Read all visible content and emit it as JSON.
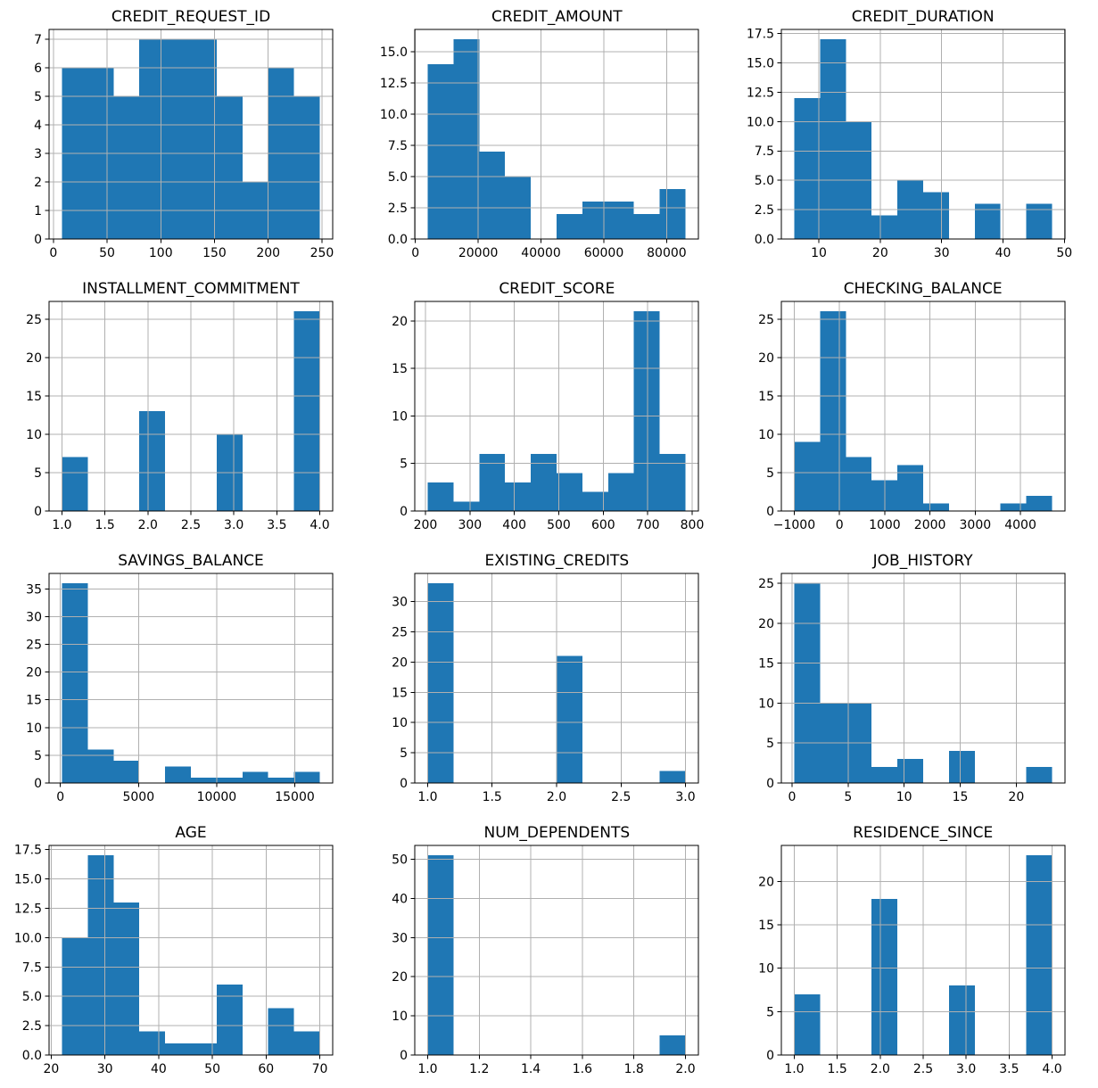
{
  "figure": {
    "background": "#ffffff",
    "axes_background": "#ffffff",
    "bar_color": "#1f77b4",
    "grid_color": "#b0b0b0",
    "spine_color": "#000000",
    "text_color": "#000000"
  },
  "layout": {
    "rows": 4,
    "cols": 3,
    "grid": true,
    "legend": null,
    "total_samples": 56
  },
  "chart_data": [
    {
      "type": "bar",
      "kind": "histogram",
      "title": "CREDIT_REQUEST_ID",
      "bins": 10,
      "bin_start": 8,
      "bin_end": 248,
      "counts": [
        6,
        6,
        5,
        7,
        7,
        7,
        5,
        2,
        6,
        5
      ],
      "xlabel": "",
      "ylabel": "",
      "x_ticks": [
        0,
        50,
        100,
        150,
        200,
        250
      ],
      "x_tick_labels": [
        "0",
        "50",
        "100",
        "150",
        "200",
        "250"
      ],
      "y_ticks": [
        0,
        1,
        2,
        3,
        4,
        5,
        6,
        7
      ],
      "y_tick_labels": [
        "0",
        "1",
        "2",
        "3",
        "4",
        "5",
        "6",
        "7"
      ]
    },
    {
      "type": "bar",
      "kind": "histogram",
      "title": "CREDIT_AMOUNT",
      "bins": 10,
      "bin_start": 3900,
      "bin_end": 86000,
      "counts": [
        14,
        16,
        7,
        5,
        0,
        2,
        3,
        3,
        2,
        4
      ],
      "xlabel": "",
      "ylabel": "",
      "x_ticks": [
        0,
        20000,
        40000,
        60000,
        80000
      ],
      "x_tick_labels": [
        "0",
        "20000",
        "40000",
        "60000",
        "80000"
      ],
      "y_ticks": [
        0,
        2.5,
        5,
        7.5,
        10,
        12.5,
        15
      ],
      "y_tick_labels": [
        "0.0",
        "2.5",
        "5.0",
        "7.5",
        "10.0",
        "12.5",
        "15.0"
      ]
    },
    {
      "type": "bar",
      "kind": "histogram",
      "title": "CREDIT_DURATION",
      "bins": 10,
      "bin_start": 6,
      "bin_end": 48,
      "counts": [
        12,
        17,
        10,
        2,
        5,
        4,
        0,
        3,
        0,
        3
      ],
      "xlabel": "",
      "ylabel": "",
      "x_ticks": [
        10,
        20,
        30,
        40,
        50
      ],
      "x_tick_labels": [
        "10",
        "20",
        "30",
        "40",
        "50"
      ],
      "y_ticks": [
        0,
        2.5,
        5,
        7.5,
        10,
        12.5,
        15,
        17.5
      ],
      "y_tick_labels": [
        "0.0",
        "2.5",
        "5.0",
        "7.5",
        "10.0",
        "12.5",
        "15.0",
        "17.5"
      ]
    },
    {
      "type": "bar",
      "kind": "histogram",
      "title": "INSTALLMENT_COMMITMENT",
      "bins": 10,
      "bin_start": 1,
      "bin_end": 4,
      "counts": [
        7,
        0,
        0,
        13,
        0,
        0,
        10,
        0,
        0,
        26
      ],
      "xlabel": "",
      "ylabel": "",
      "x_ticks": [
        1,
        1.5,
        2,
        2.5,
        3,
        3.5,
        4
      ],
      "x_tick_labels": [
        "1.0",
        "1.5",
        "2.0",
        "2.5",
        "3.0",
        "3.5",
        "4.0"
      ],
      "y_ticks": [
        0,
        5,
        10,
        15,
        20,
        25
      ],
      "y_tick_labels": [
        "0",
        "5",
        "10",
        "15",
        "20",
        "25"
      ]
    },
    {
      "type": "bar",
      "kind": "histogram",
      "title": "CREDIT_SCORE",
      "bins": 10,
      "bin_start": 205,
      "bin_end": 785,
      "counts": [
        3,
        1,
        6,
        3,
        6,
        4,
        2,
        4,
        21,
        6
      ],
      "xlabel": "",
      "ylabel": "",
      "x_ticks": [
        200,
        300,
        400,
        500,
        600,
        700,
        800
      ],
      "x_tick_labels": [
        "200",
        "300",
        "400",
        "500",
        "600",
        "700",
        "800"
      ],
      "y_ticks": [
        0,
        5,
        10,
        15,
        20
      ],
      "y_tick_labels": [
        "0",
        "5",
        "10",
        "15",
        "20"
      ]
    },
    {
      "type": "bar",
      "kind": "histogram",
      "title": "CHECKING_BALANCE",
      "bins": 10,
      "bin_start": -1000,
      "bin_end": 4700,
      "counts": [
        9,
        26,
        7,
        4,
        6,
        1,
        0,
        0,
        1,
        2
      ],
      "xlabel": "",
      "ylabel": "",
      "x_ticks": [
        -1000,
        0,
        1000,
        2000,
        3000,
        4000
      ],
      "x_tick_labels": [
        "−1000",
        "0",
        "1000",
        "2000",
        "3000",
        "4000"
      ],
      "y_ticks": [
        0,
        5,
        10,
        15,
        20,
        25
      ],
      "y_tick_labels": [
        "0",
        "5",
        "10",
        "15",
        "20",
        "25"
      ]
    },
    {
      "type": "bar",
      "kind": "histogram",
      "title": "SAVINGS_BALANCE",
      "bins": 10,
      "bin_start": 100,
      "bin_end": 16600,
      "counts": [
        36,
        6,
        4,
        0,
        3,
        1,
        1,
        2,
        1,
        2
      ],
      "xlabel": "",
      "ylabel": "",
      "x_ticks": [
        0,
        5000,
        10000,
        15000
      ],
      "x_tick_labels": [
        "0",
        "5000",
        "10000",
        "15000"
      ],
      "y_ticks": [
        0,
        5,
        10,
        15,
        20,
        25,
        30,
        35
      ],
      "y_tick_labels": [
        "0",
        "5",
        "10",
        "15",
        "20",
        "25",
        "30",
        "35"
      ]
    },
    {
      "type": "bar",
      "kind": "histogram",
      "title": "EXISTING_CREDITS",
      "bins": 10,
      "bin_start": 1,
      "bin_end": 3,
      "counts": [
        33,
        0,
        0,
        0,
        0,
        21,
        0,
        0,
        0,
        2
      ],
      "xlabel": "",
      "ylabel": "",
      "x_ticks": [
        1,
        1.5,
        2,
        2.5,
        3
      ],
      "x_tick_labels": [
        "1.0",
        "1.5",
        "2.0",
        "2.5",
        "3.0"
      ],
      "y_ticks": [
        0,
        5,
        10,
        15,
        20,
        25,
        30
      ],
      "y_tick_labels": [
        "0",
        "5",
        "10",
        "15",
        "20",
        "25",
        "30"
      ]
    },
    {
      "type": "bar",
      "kind": "histogram",
      "title": "JOB_HISTORY",
      "bins": 10,
      "bin_start": 0.2,
      "bin_end": 23.2,
      "counts": [
        25,
        10,
        10,
        2,
        3,
        0,
        4,
        0,
        0,
        2
      ],
      "xlabel": "",
      "ylabel": "",
      "x_ticks": [
        0,
        5,
        10,
        15,
        20
      ],
      "x_tick_labels": [
        "0",
        "5",
        "10",
        "15",
        "20"
      ],
      "y_ticks": [
        0,
        5,
        10,
        15,
        20,
        25
      ],
      "y_tick_labels": [
        "0",
        "5",
        "10",
        "15",
        "20",
        "25"
      ]
    },
    {
      "type": "bar",
      "kind": "histogram",
      "title": "AGE",
      "bins": 10,
      "bin_start": 22,
      "bin_end": 70,
      "counts": [
        10,
        17,
        13,
        2,
        1,
        1,
        6,
        0,
        4,
        2
      ],
      "xlabel": "",
      "ylabel": "",
      "x_ticks": [
        20,
        30,
        40,
        50,
        60,
        70
      ],
      "x_tick_labels": [
        "20",
        "30",
        "40",
        "50",
        "60",
        "70"
      ],
      "y_ticks": [
        0,
        2.5,
        5,
        7.5,
        10,
        12.5,
        15,
        17.5
      ],
      "y_tick_labels": [
        "0.0",
        "2.5",
        "5.0",
        "7.5",
        "10.0",
        "12.5",
        "15.0",
        "17.5"
      ]
    },
    {
      "type": "bar",
      "kind": "histogram",
      "title": "NUM_DEPENDENTS",
      "bins": 10,
      "bin_start": 1,
      "bin_end": 2,
      "counts": [
        51,
        0,
        0,
        0,
        0,
        0,
        0,
        0,
        0,
        5
      ],
      "xlabel": "",
      "ylabel": "",
      "x_ticks": [
        1,
        1.2,
        1.4,
        1.6,
        1.8,
        2
      ],
      "x_tick_labels": [
        "1.0",
        "1.2",
        "1.4",
        "1.6",
        "1.8",
        "2.0"
      ],
      "y_ticks": [
        0,
        10,
        20,
        30,
        40,
        50
      ],
      "y_tick_labels": [
        "0",
        "10",
        "20",
        "30",
        "40",
        "50"
      ]
    },
    {
      "type": "bar",
      "kind": "histogram",
      "title": "RESIDENCE_SINCE",
      "bins": 10,
      "bin_start": 1,
      "bin_end": 4,
      "counts": [
        7,
        0,
        0,
        18,
        0,
        0,
        8,
        0,
        0,
        23
      ],
      "xlabel": "",
      "ylabel": "",
      "x_ticks": [
        1,
        1.5,
        2,
        2.5,
        3,
        3.5,
        4
      ],
      "x_tick_labels": [
        "1.0",
        "1.5",
        "2.0",
        "2.5",
        "3.0",
        "3.5",
        "4.0"
      ],
      "y_ticks": [
        0,
        5,
        10,
        15,
        20
      ],
      "y_tick_labels": [
        "0",
        "5",
        "10",
        "15",
        "20"
      ]
    }
  ]
}
